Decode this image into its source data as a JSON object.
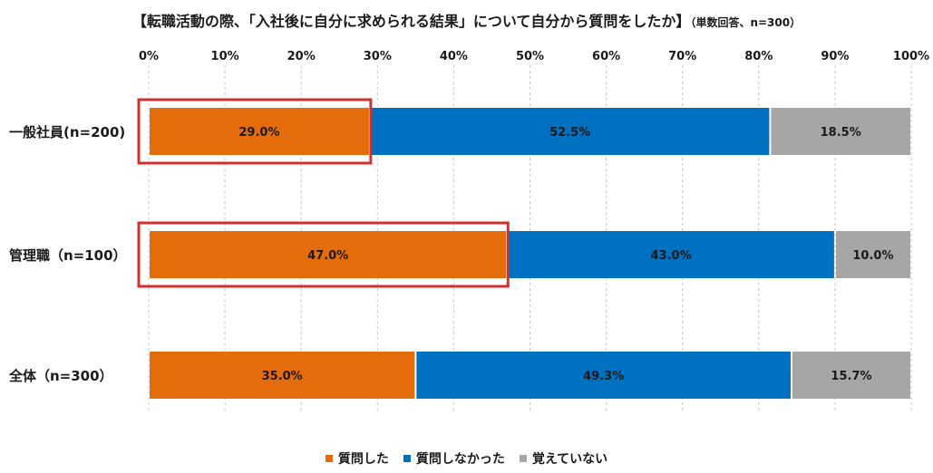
{
  "title": "【転職活動の際、「入社後に自分に求められる結果」について自分から質問をしたか】",
  "subtitle": "（単数回答、n=300）",
  "chart_data": {
    "type": "bar",
    "orientation": "horizontal",
    "stacked": true,
    "x_tick_labels": [
      "0%",
      "10%",
      "20%",
      "30%",
      "40%",
      "50%",
      "60%",
      "70%",
      "80%",
      "90%",
      "100%"
    ],
    "xlim": [
      0,
      100
    ],
    "grid": "vertical dashed",
    "categories": [
      "一般社員(n=200)",
      "管理職（n=100）",
      "全体（n=300）"
    ],
    "series": [
      {
        "name": "質問した",
        "color": "#E46C0A",
        "values": [
          29.0,
          47.0,
          35.0
        ],
        "labels": [
          "29.0%",
          "47.0%",
          "35.0%"
        ]
      },
      {
        "name": "質問しなかった",
        "color": "#0070C0",
        "values": [
          52.5,
          43.0,
          49.3
        ],
        "labels": [
          "52.5%",
          "43.0%",
          "49.3%"
        ]
      },
      {
        "name": "覚えていない",
        "color": "#A6A6A6",
        "values": [
          18.5,
          10.0,
          15.7
        ],
        "labels": [
          "18.5%",
          "10.0%",
          "15.7%"
        ]
      }
    ],
    "highlight": {
      "series_index": 0,
      "categories": [
        0,
        1
      ],
      "color": "#D32F2F"
    },
    "legend_position": "bottom"
  }
}
